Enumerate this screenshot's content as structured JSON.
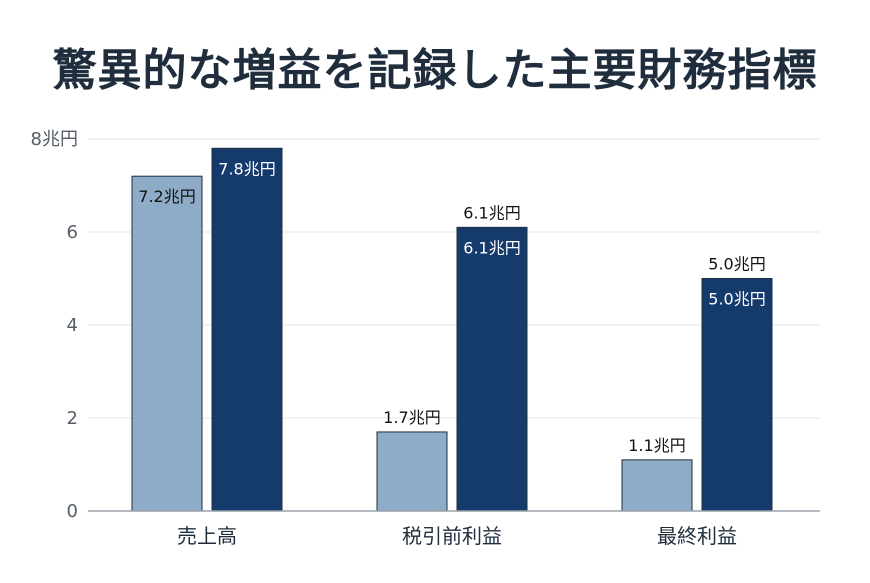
{
  "title": "驚異的な増益を記録した主要財務指標",
  "colors": {
    "light": "#8eabc8",
    "dark": "#153a6c",
    "grid": "#e3e5e8",
    "axis": "#9aa1a8"
  },
  "chart_data": {
    "type": "bar",
    "title": "驚異的な増益を記録した主要財務指標",
    "categories": [
      "売上高",
      "税引前利益",
      "最終利益"
    ],
    "series": [
      {
        "values": [
          7.2,
          1.7,
          1.1
        ],
        "labels": [
          "7.2兆円",
          "1.7兆円",
          "1.1兆円"
        ]
      },
      {
        "values": [
          7.8,
          6.1,
          5.0
        ],
        "labels": [
          "7.8兆円",
          "6.1兆円",
          "5.0兆円"
        ]
      }
    ],
    "outside_labels": [
      {
        "series": 1,
        "index": 1,
        "text": "6.1兆円"
      },
      {
        "series": 1,
        "index": 2,
        "text": "5.0兆円"
      }
    ],
    "yticks": [
      0,
      2,
      4,
      6,
      8
    ],
    "ytick_labels": [
      "0",
      "2",
      "4",
      "6",
      "8兆円"
    ],
    "ylim": [
      0,
      8
    ],
    "xlabel": "",
    "ylabel": "",
    "grid": true
  }
}
